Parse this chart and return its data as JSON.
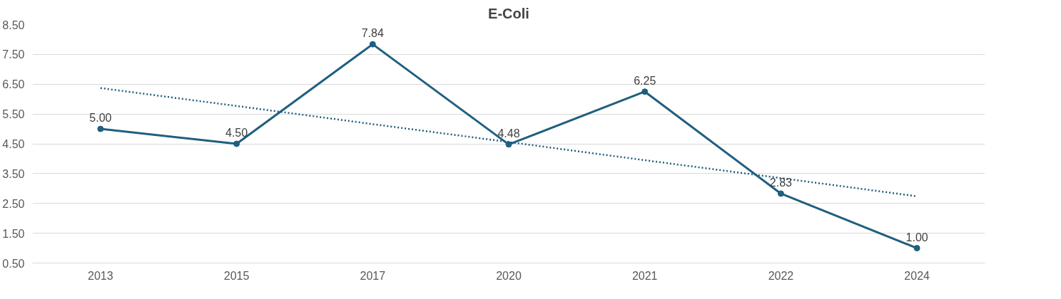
{
  "chart_data": {
    "type": "line",
    "title": "E-Coli",
    "categories": [
      "2013",
      "2015",
      "2017",
      "2020",
      "2021",
      "2022",
      "2024"
    ],
    "series": [
      {
        "color": "#1f5f7f",
        "values": [
          5.0,
          4.5,
          7.84,
          4.48,
          6.25,
          2.83,
          1.0
        ],
        "value_labels": [
          "5.00",
          "4.50",
          "7.84",
          "4.48",
          "6.25",
          "2.83",
          "1.00"
        ],
        "marker": "circle",
        "line_style": "solid"
      },
      {
        "type": "line",
        "color": "#1f5f7f",
        "values": [
          6.37,
          5.77,
          5.16,
          4.56,
          3.95,
          3.35,
          2.74
        ],
        "line_style": "dotted",
        "marker": "none"
      }
    ],
    "ylim": [
      0.5,
      8.5
    ],
    "yticks": [
      {
        "value": 0.5,
        "label": "0.50"
      },
      {
        "value": 1.5,
        "label": "1.50"
      },
      {
        "value": 2.5,
        "label": "2.50"
      },
      {
        "value": 3.5,
        "label": "3.50"
      },
      {
        "value": 4.5,
        "label": "4.50"
      },
      {
        "value": 5.5,
        "label": "5.50"
      },
      {
        "value": 6.5,
        "label": "6.50"
      },
      {
        "value": 7.5,
        "label": "7.50"
      },
      {
        "value": 8.5,
        "label": "8.50"
      }
    ],
    "grid": "y"
  }
}
